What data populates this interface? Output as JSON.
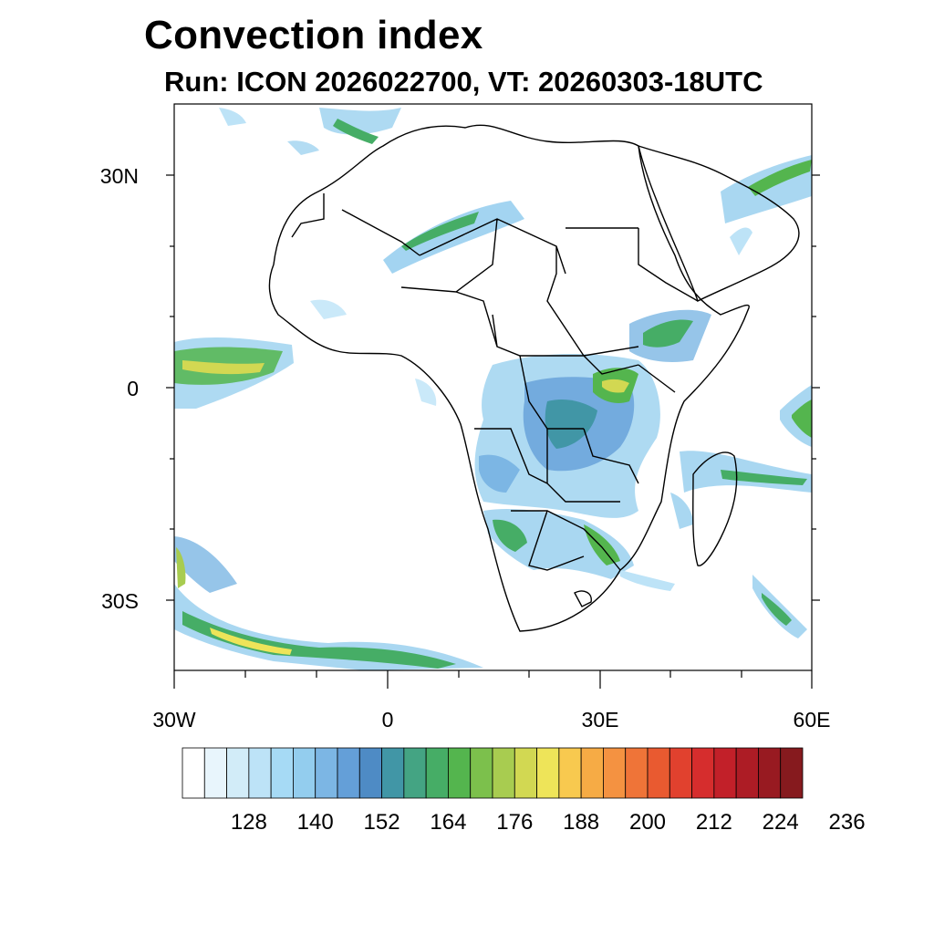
{
  "title": "Convection index",
  "subtitle": "Run: ICON 2026022700,  VT: 20260303-18UTC",
  "axes": {
    "lat_labels": [
      "30N",
      "0",
      "30S"
    ],
    "lon_labels": [
      "30W",
      "0",
      "30E",
      "60E"
    ],
    "lat_range_deg": [
      -40,
      40
    ],
    "lon_range_deg": [
      -30,
      60
    ]
  },
  "colorbar": {
    "labels": [
      "128",
      "140",
      "152",
      "164",
      "176",
      "188",
      "200",
      "212",
      "224",
      "236"
    ],
    "colors": [
      "#ffffff",
      "#e8f5fc",
      "#d2ecf8",
      "#bde3f7",
      "#a6daf5",
      "#93cdee",
      "#7cb6e4",
      "#649fd8",
      "#4e8bc5",
      "#4196a6",
      "#44a483",
      "#46ad66",
      "#54b54e",
      "#7cc04c",
      "#a8cc50",
      "#d2d852",
      "#eee459",
      "#f8c94f",
      "#f6ab45",
      "#f49241",
      "#ef7438",
      "#e95a30",
      "#e1412e",
      "#d62d2d",
      "#c22029",
      "#ad1c25",
      "#981a21",
      "#861a1e"
    ]
  },
  "colors": {
    "border": "#000000",
    "frame": "#000000"
  }
}
